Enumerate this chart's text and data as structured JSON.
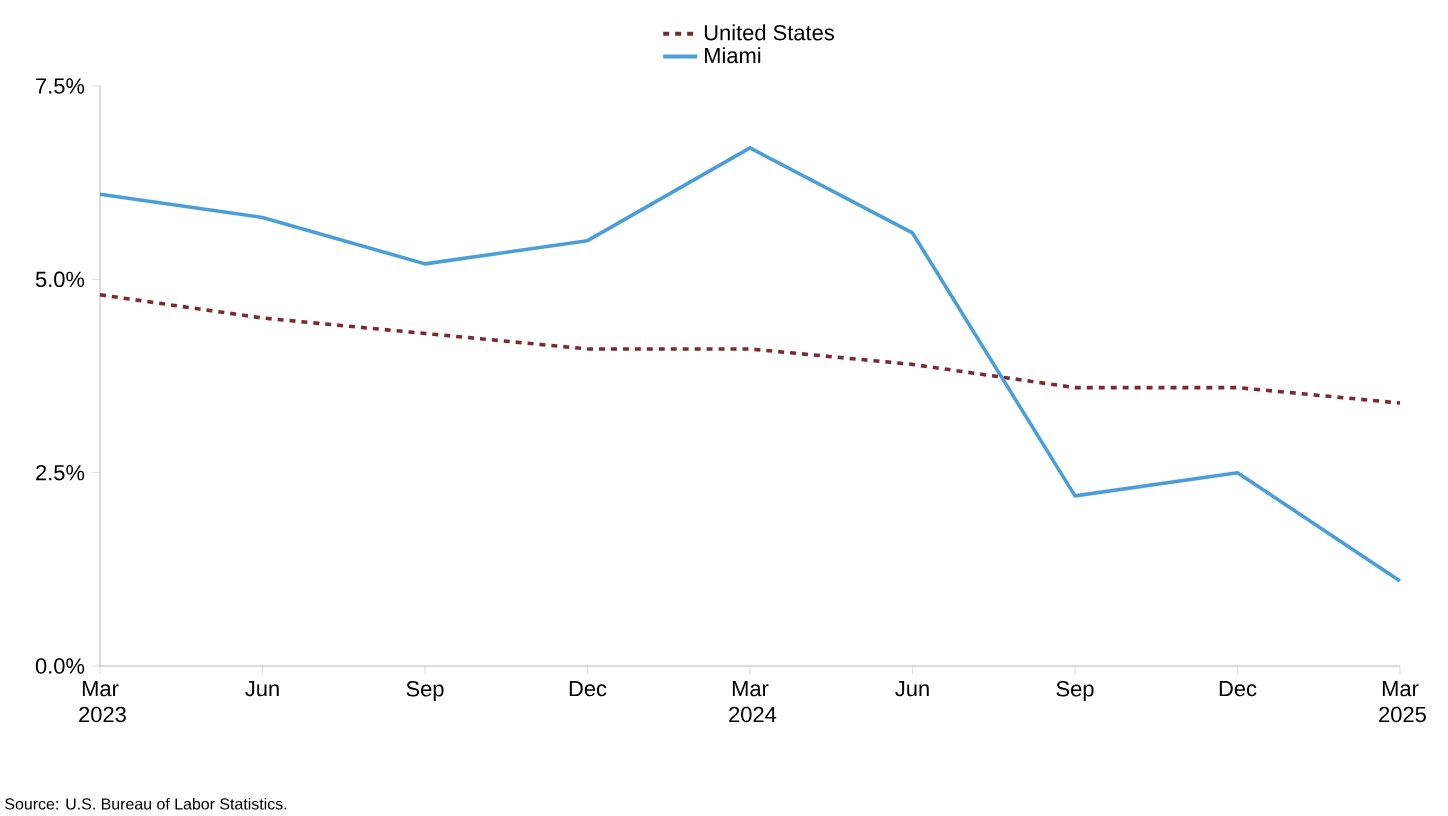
{
  "chart_data": {
    "type": "line",
    "categories": [
      "Mar 2023",
      "Jun",
      "Sep",
      "Dec",
      "Mar 2024",
      "Jun",
      "Sep",
      "Dec",
      "Mar 2025"
    ],
    "series": [
      {
        "name": "United States",
        "color": "#7b2a32",
        "line_style": "dashed",
        "values": [
          4.8,
          4.5,
          4.3,
          4.1,
          4.1,
          3.9,
          3.6,
          3.6,
          3.4
        ]
      },
      {
        "name": "Miami",
        "color": "#4a9fd8",
        "line_style": "solid",
        "values": [
          6.1,
          5.8,
          5.2,
          5.5,
          6.7,
          5.6,
          2.2,
          2.5,
          1.1
        ]
      }
    ],
    "ylim": [
      0,
      7.5
    ],
    "yticks": [
      {
        "value": 0,
        "label": "0.0%"
      },
      {
        "value": 2.5,
        "label": "2.5%"
      },
      {
        "value": 5,
        "label": "5.0%"
      },
      {
        "value": 7.5,
        "label": "7.5%"
      }
    ],
    "grid": false,
    "legend": "top",
    "marker": "none",
    "annotations": [
      "Source: U.S. Bureau of Labor Statistics."
    ]
  }
}
